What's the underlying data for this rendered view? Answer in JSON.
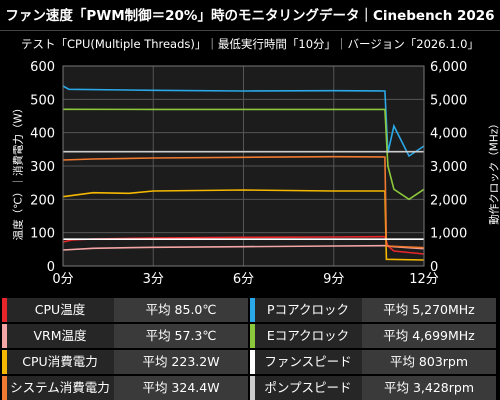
{
  "title": "ファン速度「PWM制御＝20%」時のモニタリングデータ｜Cinebench 2026",
  "subtitle": "テスト「CPU(Multiple Threads)」｜最低実行時間「10分」｜バージョン「2026.1.0」",
  "chart_data": {
    "type": "line",
    "xlabel": "",
    "ylabel_left": "温度（℃）｜消費電力（W）",
    "ylabel_right": "動作クロック（MHz）",
    "x_ticks": [
      "0分",
      "3分",
      "6分",
      "9分",
      "12分"
    ],
    "xlim": [
      0,
      12
    ],
    "ylim_left": [
      0,
      600
    ],
    "ylim_right": [
      0,
      6000
    ],
    "y_ticks_left": [
      "0",
      "100",
      "200",
      "300",
      "400",
      "500",
      "600"
    ],
    "y_ticks_right": [
      "0",
      "1,000",
      "2,000",
      "3,000",
      "4,000",
      "5,000",
      "6,000"
    ],
    "grid": true,
    "series": [
      {
        "name": "CPU温度",
        "axis": "left",
        "color": "#e8262a",
        "points": [
          [
            0,
            72
          ],
          [
            0.3,
            78
          ],
          [
            1,
            81
          ],
          [
            3,
            84
          ],
          [
            6,
            86
          ],
          [
            9,
            87
          ],
          [
            10.7,
            88
          ],
          [
            10.8,
            60
          ],
          [
            11,
            45
          ],
          [
            12,
            36
          ]
        ]
      },
      {
        "name": "VRM温度",
        "axis": "left",
        "color": "#f4a6a6",
        "points": [
          [
            0,
            48
          ],
          [
            1,
            53
          ],
          [
            3,
            56
          ],
          [
            6,
            58
          ],
          [
            9,
            60
          ],
          [
            10.7,
            61
          ],
          [
            11,
            58
          ],
          [
            12,
            52
          ]
        ]
      },
      {
        "name": "CPU消費電力",
        "axis": "left",
        "color": "#f5b800",
        "points": [
          [
            0,
            208
          ],
          [
            1,
            220
          ],
          [
            2.2,
            218
          ],
          [
            3,
            225
          ],
          [
            6,
            228
          ],
          [
            9,
            225
          ],
          [
            10.7,
            225
          ],
          [
            10.75,
            20
          ],
          [
            12,
            18
          ]
        ]
      },
      {
        "name": "システム消費電力",
        "axis": "left",
        "color": "#f07a30",
        "points": [
          [
            0,
            318
          ],
          [
            1,
            321
          ],
          [
            3,
            324
          ],
          [
            6,
            326
          ],
          [
            9,
            328
          ],
          [
            10.7,
            327
          ],
          [
            10.75,
            60
          ],
          [
            12,
            55
          ]
        ]
      },
      {
        "name": "Pコアクロック",
        "axis": "right",
        "color": "#2aa8e8",
        "points": [
          [
            0,
            5400
          ],
          [
            0.2,
            5300
          ],
          [
            3,
            5270
          ],
          [
            6,
            5250
          ],
          [
            9,
            5260
          ],
          [
            10.7,
            5250
          ],
          [
            10.8,
            3400
          ],
          [
            11,
            4200
          ],
          [
            11.5,
            3300
          ],
          [
            12,
            3600
          ]
        ]
      },
      {
        "name": "Eコアクロック",
        "axis": "right",
        "color": "#8cc83c",
        "points": [
          [
            0,
            4700
          ],
          [
            3,
            4699
          ],
          [
            6,
            4699
          ],
          [
            9,
            4699
          ],
          [
            10.7,
            4699
          ],
          [
            10.8,
            3000
          ],
          [
            11,
            2300
          ],
          [
            11.5,
            2000
          ],
          [
            12,
            2300
          ]
        ]
      },
      {
        "name": "ファンスピード",
        "axis": "right",
        "color": "#ffffff",
        "points": [
          [
            0,
            803
          ],
          [
            12,
            803
          ]
        ]
      },
      {
        "name": "ポンプスピード",
        "axis": "right",
        "color": "#cccccc",
        "points": [
          [
            0,
            3428
          ],
          [
            10.7,
            3428
          ],
          [
            10.75,
            3428
          ],
          [
            12,
            3428
          ]
        ]
      }
    ]
  },
  "legend": [
    {
      "name": "CPU温度",
      "value": "平均 85.0℃",
      "color": "#e8262a"
    },
    {
      "name": "VRM温度",
      "value": "平均 57.3℃",
      "color": "#f4a6a6"
    },
    {
      "name": "CPU消費電力",
      "value": "平均 223.2W",
      "color": "#f5b800"
    },
    {
      "name": "システム消費電力",
      "value": "平均 324.4W",
      "color": "#f07a30"
    },
    {
      "name": "Pコアクロック",
      "value": "平均 5,270MHz",
      "color": "#2aa8e8"
    },
    {
      "name": "Eコアクロック",
      "value": "平均 4,699MHz",
      "color": "#8cc83c"
    },
    {
      "name": "ファンスピード",
      "value": "平均 803rpm",
      "color": "#ffffff"
    },
    {
      "name": "ポンプスピード",
      "value": "平均 3,428rpm",
      "color": "#cccccc"
    }
  ]
}
